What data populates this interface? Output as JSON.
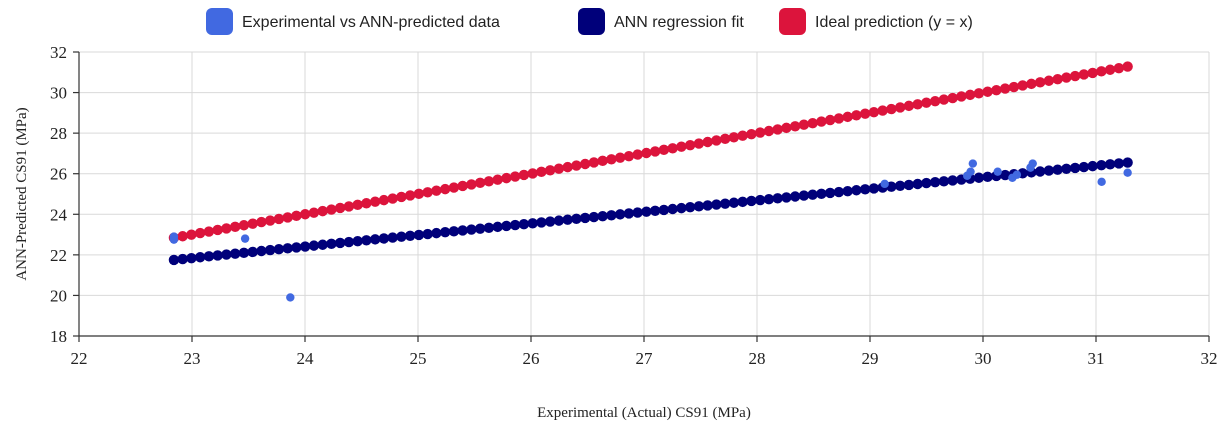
{
  "chart_data": {
    "type": "scatter",
    "title": "",
    "xlabel": "Experimental (Actual) CS91 (MPa)",
    "ylabel": "ANN-Predicted CS91 (MPa)",
    "xlim": [
      22,
      32
    ],
    "ylim": [
      18,
      32
    ],
    "x_ticks": [
      22,
      23,
      24,
      25,
      26,
      27,
      28,
      29,
      30,
      31,
      32
    ],
    "y_ticks": [
      18,
      20,
      22,
      24,
      26,
      28,
      30,
      32
    ],
    "grid": true,
    "legend_position": "top-center",
    "series": [
      {
        "name": "Experimental vs ANN-predicted data",
        "kind": "points",
        "color": "#4169e1",
        "x": [
          22.84,
          22.84,
          23.47,
          23.87,
          29.13,
          29.86,
          29.89,
          29.91,
          30.13,
          30.26,
          30.3,
          30.42,
          30.44,
          31.05,
          31.28
        ],
        "y": [
          22.9,
          22.75,
          22.8,
          19.9,
          25.5,
          25.9,
          26.1,
          26.5,
          26.1,
          25.8,
          25.95,
          26.3,
          26.5,
          25.6,
          26.05
        ]
      },
      {
        "name": "ANN regression fit",
        "kind": "dotted-line",
        "color": "#00007a",
        "x_start": 22.84,
        "x_end": 31.28,
        "y_start": 21.75,
        "y_end": 26.55
      },
      {
        "name": "Ideal prediction (y = x)",
        "kind": "dotted-line",
        "color": "#dc143c",
        "x_start": 22.84,
        "x_end": 31.28,
        "y_start": 22.84,
        "y_end": 31.28
      }
    ]
  }
}
